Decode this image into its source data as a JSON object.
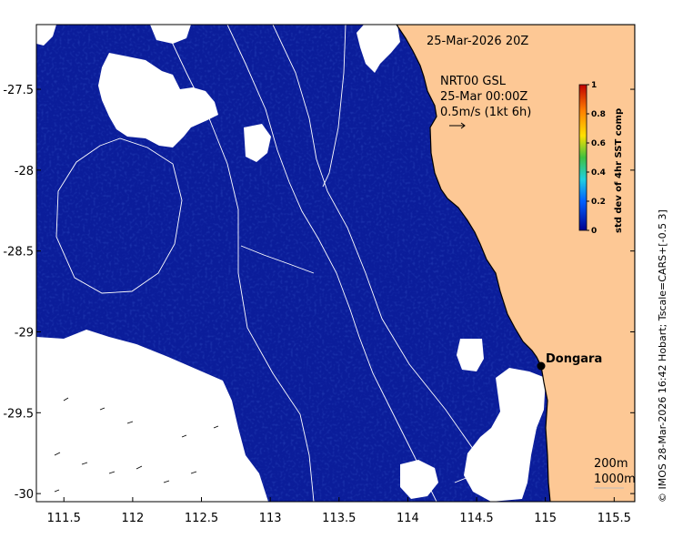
{
  "map": {
    "timestamp": "25-Mar-2026 20Z",
    "current_title": "NRT00 GSL",
    "current_time": "25-Mar 00:00Z",
    "current_scale": "0.5m/s (1kt 6h)",
    "place_name": "Dongara",
    "isobath_labels": [
      "200m",
      "1000m"
    ],
    "credit": "© IMOS 28-Mar-2026 16:42 Hobart; Tscale=CARS+[-0.5 3]",
    "x_ticks": [
      "111.5",
      "112",
      "112.5",
      "113",
      "113.5",
      "114",
      "114.5",
      "115",
      "115.5"
    ],
    "y_ticks": [
      "-27.5",
      "-28",
      "-28.5",
      "-29",
      "-29.5",
      "-30"
    ],
    "x_range": [
      111.3,
      115.65
    ],
    "y_range": [
      -30.05,
      -27.1
    ],
    "colors": {
      "ocean": "#0b1d9a",
      "land": "#fdc895",
      "cloud": "#ffffff"
    }
  },
  "colorbar": {
    "title": "std dev of 4hr SST comp",
    "ticks": [
      "0",
      "0.2",
      "0.4",
      "0.6",
      "0.8",
      "1"
    ],
    "stops": [
      "#00008f",
      "#0060ff",
      "#20d0e0",
      "#40c040",
      "#ffe000",
      "#ff8000",
      "#c00000"
    ]
  }
}
